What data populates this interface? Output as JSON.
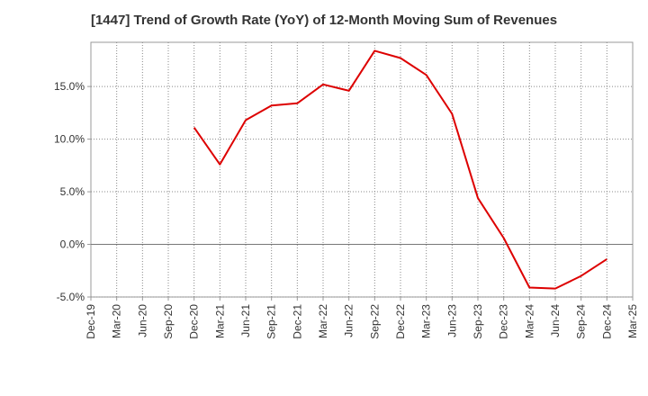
{
  "chart_data": {
    "type": "line",
    "title": "[1447]  Trend of Growth Rate (YoY) of 12-Month Moving Sum of Revenues",
    "xlabel": "",
    "ylabel": "",
    "x_ticks": [
      "Dec-19",
      "Mar-20",
      "Jun-20",
      "Sep-20",
      "Dec-20",
      "Mar-21",
      "Jun-21",
      "Sep-21",
      "Dec-21",
      "Mar-22",
      "Jun-22",
      "Sep-22",
      "Dec-22",
      "Mar-23",
      "Jun-23",
      "Sep-23",
      "Dec-23",
      "Mar-24",
      "Jun-24",
      "Sep-24",
      "Dec-24",
      "Mar-25"
    ],
    "y_ticks": [
      "-5.0%",
      "0.0%",
      "5.0%",
      "10.0%",
      "15.0%"
    ],
    "y_tick_values": [
      -5,
      0,
      5,
      10,
      15
    ],
    "ylim": [
      -5,
      19.2
    ],
    "grid": true,
    "series_color": "#dd0000",
    "series": [
      {
        "x": [
          "Dec-20",
          "Mar-21",
          "Jun-21",
          "Sep-21",
          "Dec-21",
          "Mar-22",
          "Jun-22",
          "Sep-22",
          "Dec-22",
          "Mar-23",
          "Jun-23",
          "Sep-23",
          "Dec-23",
          "Mar-24",
          "Jun-24",
          "Sep-24",
          "Dec-24"
        ],
        "values": [
          11.1,
          7.6,
          11.8,
          13.2,
          13.4,
          15.2,
          14.6,
          18.4,
          17.7,
          16.1,
          12.4,
          4.4,
          0.6,
          -4.1,
          -4.2,
          -3.0,
          -1.4
        ]
      }
    ]
  }
}
